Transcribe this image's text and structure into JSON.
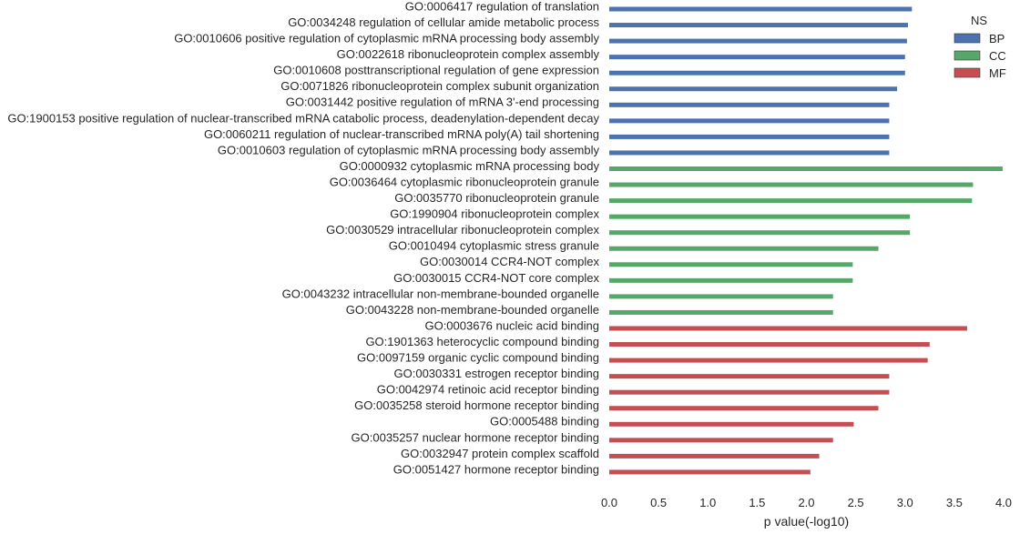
{
  "chart_data": {
    "type": "bar",
    "orientation": "horizontal",
    "xlabel": "p value(-log10)",
    "ylabel": "",
    "xlim": [
      0,
      4.0
    ],
    "x_ticks": [
      "0.0",
      "0.5",
      "1.0",
      "1.5",
      "2.0",
      "2.5",
      "3.0",
      "3.5",
      "4.0"
    ],
    "grid": false,
    "legend": {
      "title": "NS",
      "placement": "top-right",
      "entries": [
        {
          "name": "BP",
          "color": "#4c72b0"
        },
        {
          "name": "CC",
          "color": "#55a868"
        },
        {
          "name": "MF",
          "color": "#c44e52"
        }
      ]
    },
    "categories": [
      "GO:0006417 regulation of translation",
      "GO:0034248 regulation of cellular amide metabolic process",
      "GO:0010606 positive regulation of cytoplasmic mRNA processing body assembly",
      "GO:0022618 ribonucleoprotein complex assembly",
      "GO:0010608 posttranscriptional regulation of gene expression",
      "GO:0071826 ribonucleoprotein complex subunit organization",
      "GO:0031442 positive regulation of mRNA 3'-end processing",
      "GO:1900153 positive regulation of nuclear-transcribed mRNA catabolic process, deadenylation-dependent decay",
      "GO:0060211 regulation of nuclear-transcribed mRNA poly(A) tail shortening",
      "GO:0010603 regulation of cytoplasmic mRNA processing body assembly",
      "GO:0000932 cytoplasmic mRNA processing body",
      "GO:0036464 cytoplasmic ribonucleoprotein granule",
      "GO:0035770 ribonucleoprotein granule",
      "GO:1990904 ribonucleoprotein complex",
      "GO:0030529 intracellular ribonucleoprotein complex",
      "GO:0010494 cytoplasmic stress granule",
      "GO:0030014 CCR4-NOT complex",
      "GO:0030015 CCR4-NOT core complex",
      "GO:0043232 intracellular non-membrane-bounded organelle",
      "GO:0043228 non-membrane-bounded organelle",
      "GO:0003676 nucleic acid binding",
      "GO:1901363 heterocyclic compound binding",
      "GO:0097159 organic cyclic compound binding",
      "GO:0030331 estrogen receptor binding",
      "GO:0042974 retinoic acid receptor binding",
      "GO:0035258 steroid hormone receptor binding",
      "GO:0005488 binding",
      "GO:0035257 nuclear hormone receptor binding",
      "GO:0032947 protein complex scaffold",
      "GO:0051427 hormone receptor binding"
    ],
    "groups": [
      "BP",
      "BP",
      "BP",
      "BP",
      "BP",
      "BP",
      "BP",
      "BP",
      "BP",
      "BP",
      "CC",
      "CC",
      "CC",
      "CC",
      "CC",
      "CC",
      "CC",
      "CC",
      "CC",
      "CC",
      "MF",
      "MF",
      "MF",
      "MF",
      "MF",
      "MF",
      "MF",
      "MF",
      "MF",
      "MF"
    ],
    "values": [
      3.07,
      3.03,
      3.02,
      3.0,
      3.0,
      2.92,
      2.84,
      2.84,
      2.84,
      2.84,
      3.99,
      3.69,
      3.68,
      3.05,
      3.05,
      2.73,
      2.47,
      2.47,
      2.27,
      2.27,
      3.63,
      3.25,
      3.23,
      2.84,
      2.84,
      2.73,
      2.48,
      2.27,
      2.13,
      2.04
    ]
  }
}
